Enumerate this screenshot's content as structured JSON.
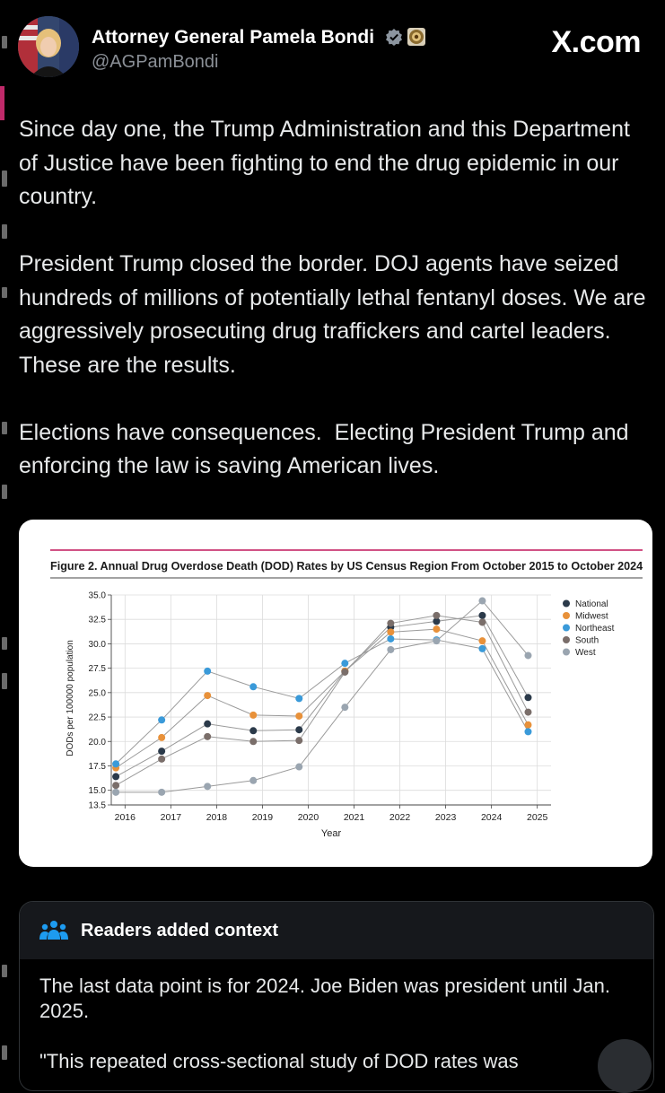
{
  "tweet": {
    "author_name": "Attorney General Pamela Bondi",
    "handle": "@AGPamBondi",
    "site": "X.com",
    "paragraphs": [
      "Since day one, the Trump Administration and this Department of Justice have been fighting to end the drug epidemic in our country.",
      "President Trump closed the border. DOJ agents have seized hundreds of millions of potentially lethal fentanyl doses. We are aggressively prosecuting drug traffickers and cartel leaders. These are the results.",
      "Elections have consequences.  Electing President Trump and enforcing the law is saving American lives."
    ]
  },
  "context": {
    "title": "Readers added context",
    "line1": "The last data point is for 2024. Joe Biden was president until Jan. 2025.",
    "line2": "\"This repeated cross-sectional study of DOD rates was"
  },
  "colors": {
    "accent_pink": "#c2185b",
    "national": "#2b3a4a",
    "midwest": "#e8913a",
    "northeast": "#3a9ad9",
    "south": "#7a6e6a",
    "west": "#9aa5b0"
  },
  "chart_data": {
    "type": "line",
    "title": "Figure 2. Annual Drug Overdose Death (DOD) Rates by US Census Region From October 2015 to October 2024",
    "xlabel": "Year",
    "ylabel": "DODs per 100000 population",
    "x_tick_labels": [
      "2016",
      "2017",
      "2018",
      "2019",
      "2020",
      "2021",
      "2022",
      "2023",
      "2024",
      "2025"
    ],
    "x_ticks": [
      2016,
      2017,
      2018,
      2019,
      2020,
      2021,
      2022,
      2023,
      2024,
      2025
    ],
    "y_tick_labels": [
      "13.5",
      "15.0",
      "17.5",
      "20.0",
      "22.5",
      "25.0",
      "27.5",
      "30.0",
      "32.5",
      "35.0"
    ],
    "y_ticks": [
      13.5,
      15.0,
      17.5,
      20.0,
      22.5,
      25.0,
      27.5,
      30.0,
      32.5,
      35.0
    ],
    "xlim": [
      2015.7,
      2025.3
    ],
    "ylim": [
      13.5,
      35.0
    ],
    "x": [
      2015.8,
      2016.8,
      2017.8,
      2018.8,
      2019.8,
      2020.8,
      2021.8,
      2022.8,
      2023.8,
      2024.8
    ],
    "legend_position": "top-right",
    "series": [
      {
        "name": "National",
        "color_key": "national",
        "values": [
          16.4,
          19.0,
          21.8,
          21.1,
          21.2,
          27.2,
          31.7,
          32.3,
          32.9,
          24.5
        ]
      },
      {
        "name": "Midwest",
        "color_key": "midwest",
        "values": [
          17.3,
          20.4,
          24.7,
          22.7,
          22.6,
          27.2,
          31.2,
          31.5,
          30.3,
          21.7
        ]
      },
      {
        "name": "Northeast",
        "color_key": "northeast",
        "values": [
          17.7,
          22.2,
          27.2,
          25.6,
          24.4,
          28.0,
          30.5,
          30.4,
          29.5,
          21.0
        ]
      },
      {
        "name": "South",
        "color_key": "south",
        "values": [
          15.5,
          18.2,
          20.5,
          20.0,
          20.1,
          27.1,
          32.1,
          32.9,
          32.2,
          23.0
        ]
      },
      {
        "name": "West",
        "color_key": "west",
        "values": [
          14.8,
          14.8,
          15.4,
          16.0,
          17.4,
          23.5,
          29.4,
          30.3,
          34.4,
          28.8
        ]
      }
    ]
  }
}
